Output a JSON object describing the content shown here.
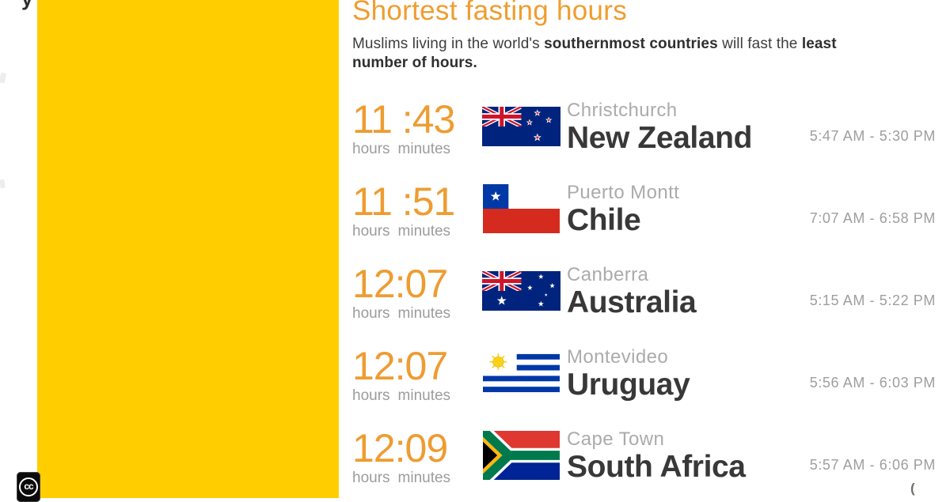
{
  "page": {
    "yellow_panel_color": "#FFCD00",
    "accent_orange": "#EF9D30",
    "top_left_text_fragment": "y",
    "bottom_right_text_fragment": "(",
    "cc_badge_label": "cc"
  },
  "header": {
    "title": "Shortest fasting hours",
    "subtitle_parts": [
      {
        "text": "Muslims living in the world's ",
        "bold": false
      },
      {
        "text": "southernmost countries",
        "bold": true
      },
      {
        "text": " will fast the ",
        "bold": false
      },
      {
        "text": "least number of hours.",
        "bold": true
      }
    ]
  },
  "list": {
    "time_unit_hours": "hours",
    "time_unit_minutes": "minutes",
    "rows": [
      {
        "time": "11 :43",
        "city": "Christchurch",
        "country": "New Zealand",
        "flag": "new-zealand-flag",
        "range": "5:47 AM - 5:30 PM"
      },
      {
        "time": "11 :51",
        "city": "Puerto Montt",
        "country": "Chile",
        "flag": "chile-flag",
        "range": "7:07 AM - 6:58 PM"
      },
      {
        "time": "12:07",
        "city": "Canberra",
        "country": "Australia",
        "flag": "australia-flag",
        "range": "5:15 AM - 5:22 PM"
      },
      {
        "time": "12:07",
        "city": "Montevideo",
        "country": "Uruguay",
        "flag": "uruguay-flag",
        "range": "5:56 AM - 6:03 PM"
      },
      {
        "time": "12:09",
        "city": "Cape Town",
        "country": "South Africa",
        "flag": "south-africa-flag",
        "range": "5:57 AM - 6:06 PM"
      }
    ]
  },
  "chart_data": {
    "type": "table",
    "title": "Shortest fasting hours",
    "subtitle": "Muslims living in the world's southernmost countries will fast the least number of hours.",
    "columns": [
      "fasting_hours",
      "fasting_minutes",
      "city",
      "country",
      "fast_start",
      "fast_end"
    ],
    "rows": [
      {
        "fasting_hours": 11,
        "fasting_minutes": 43,
        "city": "Christchurch",
        "country": "New Zealand",
        "fast_start": "5:47 AM",
        "fast_end": "5:30 PM"
      },
      {
        "fasting_hours": 11,
        "fasting_minutes": 51,
        "city": "Puerto Montt",
        "country": "Chile",
        "fast_start": "7:07 AM",
        "fast_end": "6:58 PM"
      },
      {
        "fasting_hours": 12,
        "fasting_minutes": 7,
        "city": "Canberra",
        "country": "Australia",
        "fast_start": "5:15 AM",
        "fast_end": "5:22 PM"
      },
      {
        "fasting_hours": 12,
        "fasting_minutes": 7,
        "city": "Montevideo",
        "country": "Uruguay",
        "fast_start": "5:56 AM",
        "fast_end": "6:03 PM"
      },
      {
        "fasting_hours": 12,
        "fasting_minutes": 9,
        "city": "Cape Town",
        "country": "South Africa",
        "fast_start": "5:57 AM",
        "fast_end": "6:06 PM"
      }
    ]
  }
}
